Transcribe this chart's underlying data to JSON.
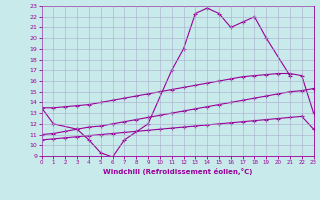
{
  "xlabel": "Windchill (Refroidissement éolien,°C)",
  "color": "#990099",
  "bg_color": "#c8eaea",
  "grid_color": "#aaaacc",
  "ylim": [
    9,
    23
  ],
  "xlim": [
    0,
    23
  ],
  "yticks": [
    9,
    10,
    11,
    12,
    13,
    14,
    15,
    16,
    17,
    18,
    19,
    20,
    21,
    22,
    23
  ],
  "xticks": [
    0,
    1,
    2,
    3,
    4,
    5,
    6,
    7,
    8,
    9,
    10,
    11,
    12,
    13,
    14,
    15,
    16,
    17,
    18,
    19,
    20,
    21,
    22,
    23
  ],
  "curve1_x": [
    0,
    1,
    3,
    4,
    5,
    6,
    7,
    9,
    11,
    12,
    13,
    14,
    15,
    16,
    17,
    18,
    19,
    21
  ],
  "curve1_y": [
    13.5,
    12.0,
    11.5,
    10.5,
    9.3,
    8.9,
    10.5,
    12.0,
    17.0,
    19.0,
    22.3,
    22.8,
    22.3,
    21.0,
    21.5,
    22.0,
    20.0,
    16.5
  ],
  "curve2_x": [
    0,
    1,
    2,
    3,
    4,
    5,
    6,
    7,
    8,
    9,
    10,
    11,
    12,
    13,
    14,
    15,
    16,
    17,
    18,
    19,
    20,
    21,
    22,
    23
  ],
  "curve2_y": [
    13.5,
    13.5,
    13.6,
    13.7,
    13.8,
    14.0,
    14.2,
    14.4,
    14.6,
    14.8,
    15.0,
    15.2,
    15.4,
    15.6,
    15.8,
    16.0,
    16.2,
    16.4,
    16.5,
    16.6,
    16.7,
    16.7,
    16.5,
    13.0
  ],
  "curve3_x": [
    0,
    1,
    2,
    3,
    4,
    5,
    6,
    7,
    8,
    9,
    10,
    11,
    12,
    13,
    14,
    15,
    16,
    17,
    18,
    19,
    20,
    21,
    22,
    23
  ],
  "curve3_y": [
    11.0,
    11.1,
    11.3,
    11.5,
    11.7,
    11.8,
    12.0,
    12.2,
    12.4,
    12.6,
    12.8,
    13.0,
    13.2,
    13.4,
    13.6,
    13.8,
    14.0,
    14.2,
    14.4,
    14.6,
    14.8,
    15.0,
    15.1,
    15.3
  ],
  "curve4_x": [
    0,
    1,
    2,
    3,
    4,
    5,
    6,
    7,
    8,
    9,
    10,
    11,
    12,
    13,
    14,
    15,
    16,
    17,
    18,
    19,
    20,
    21,
    22,
    23
  ],
  "curve4_y": [
    10.5,
    10.6,
    10.7,
    10.8,
    10.9,
    11.0,
    11.1,
    11.2,
    11.3,
    11.4,
    11.5,
    11.6,
    11.7,
    11.8,
    11.9,
    12.0,
    12.1,
    12.2,
    12.3,
    12.4,
    12.5,
    12.6,
    12.7,
    11.5
  ]
}
